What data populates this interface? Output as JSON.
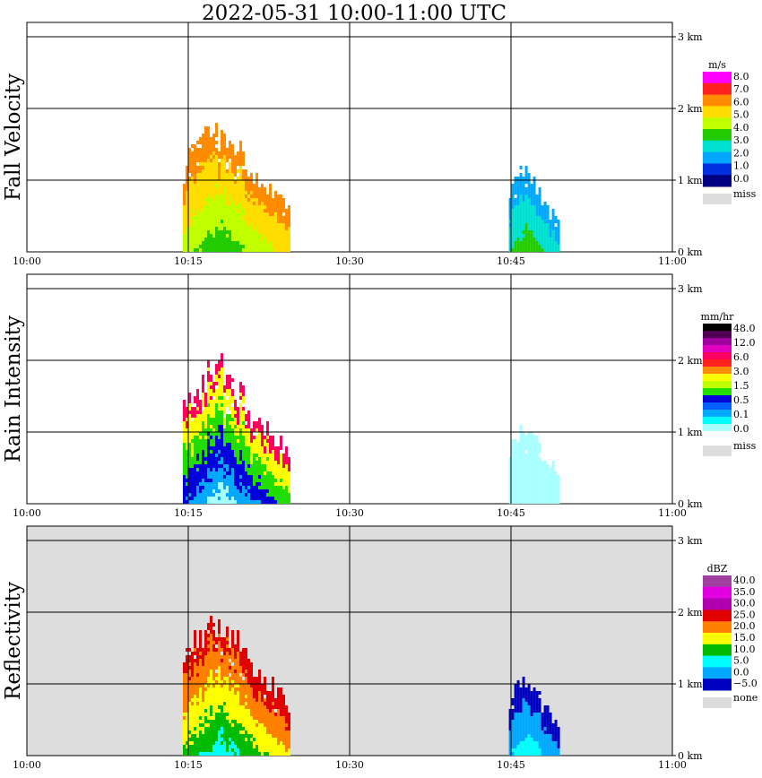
{
  "title": "2022-05-31   10:00-11:00 UTC",
  "chart_data": [
    {
      "type": "heatmap",
      "ylabel": "Fall Velocity",
      "bg": "#ffffff",
      "x_ticks": [
        "10:00",
        "10:15",
        "10:30",
        "10:45",
        "11:00"
      ],
      "y_ticks": [
        "0 km",
        "1 km",
        "2 km",
        "3 km"
      ],
      "xlim": [
        0,
        60
      ],
      "ylim_km": [
        0,
        3.2
      ],
      "colorbar": {
        "unit": "m/s",
        "labels": [
          "8.0",
          "7.0",
          "6.0",
          "5.0",
          "4.0",
          "3.0",
          "2.0",
          "1.0",
          "0.0"
        ],
        "colors": [
          "#ff00ff",
          "#ff2020",
          "#ff8c00",
          "#ffdd00",
          "#bfff00",
          "#22cc00",
          "#00e0d0",
          "#00a8ff",
          "#0030e0",
          "#000080"
        ],
        "extra": [
          {
            "label": "miss",
            "color": "#dddddd"
          }
        ]
      },
      "echoes": [
        {
          "start": 14.5,
          "end": 24.5,
          "top_km": 1.72,
          "peak_colors": [
            "#22cc00",
            "#bfff00",
            "#ffdd00",
            "#ff8c00"
          ]
        },
        {
          "start": 44.8,
          "end": 49.5,
          "top_km": 1.15,
          "peak_colors": [
            "#22cc00",
            "#00e0d0",
            "#00a8ff"
          ]
        }
      ]
    },
    {
      "type": "heatmap",
      "ylabel": "Rain Intensity",
      "bg": "#ffffff",
      "x_ticks": [
        "10:00",
        "10:15",
        "10:30",
        "10:45",
        "11:00"
      ],
      "y_ticks": [
        "0 km",
        "1 km",
        "2 km",
        "3 km"
      ],
      "xlim": [
        0,
        60
      ],
      "ylim_km": [
        0,
        3.2
      ],
      "colorbar": {
        "unit": "mm/hr",
        "labels": [
          "48.0",
          "12.0",
          "6.0",
          "3.0",
          "1.5",
          "0.5",
          "0.1",
          "0.0"
        ],
        "colors": [
          "#000000",
          "#500050",
          "#a000a0",
          "#e000c0",
          "#ff0060",
          "#ff2020",
          "#ff8c00",
          "#ffff00",
          "#bfff00",
          "#22dd00",
          "#0000dd",
          "#0060ff",
          "#00a8ff",
          "#00ffff",
          "#a8ffff",
          "#ffffff"
        ],
        "extra": [
          {
            "label": "miss",
            "color": "#dddddd"
          }
        ]
      },
      "echoes": [
        {
          "start": 14.5,
          "end": 24.5,
          "top_km": 1.95,
          "peak_colors": [
            "#a8ffff",
            "#00a8ff",
            "#0000dd",
            "#22dd00",
            "#ffff00",
            "#ff0060"
          ]
        },
        {
          "start": 44.8,
          "end": 49.5,
          "top_km": 1.1,
          "peak_colors": [
            "#a8ffff"
          ]
        }
      ]
    },
    {
      "type": "heatmap",
      "ylabel": "Reflectivity",
      "bg": "#dddddd",
      "x_ticks": [
        "10:00",
        "10:15",
        "10:30",
        "10:45",
        "11:00"
      ],
      "y_ticks": [
        "0 km",
        "1 km",
        "2 km",
        "3 km"
      ],
      "xlim": [
        0,
        60
      ],
      "ylim_km": [
        0,
        3.2
      ],
      "colorbar": {
        "unit": "dBZ",
        "labels": [
          "40.0",
          "35.0",
          "30.0",
          "25.0",
          "20.0",
          "15.0",
          "10.0",
          "5.0",
          "0.0",
          "−5.0"
        ],
        "colors": [
          "#a040a0",
          "#e000e0",
          "#b000b0",
          "#e00000",
          "#ff8000",
          "#ffff00",
          "#00bb00",
          "#00ffff",
          "#00a8ff",
          "#0000c0"
        ],
        "extra": [
          {
            "label": "none",
            "color": "#dddddd"
          }
        ]
      },
      "echoes": [
        {
          "start": 14.5,
          "end": 24.5,
          "top_km": 1.95,
          "peak_colors": [
            "#00ffff",
            "#00bb00",
            "#ffff00",
            "#ff8000",
            "#e00000"
          ]
        },
        {
          "start": 44.8,
          "end": 49.5,
          "top_km": 1.15,
          "peak_colors": [
            "#00ffff",
            "#00a8ff",
            "#0000c0"
          ]
        }
      ]
    }
  ]
}
